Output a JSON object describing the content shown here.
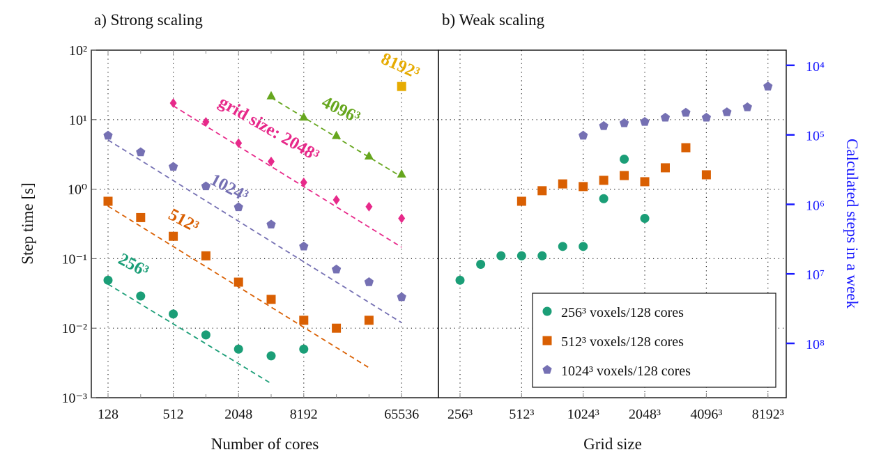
{
  "chart_data": [
    {
      "type": "scatter",
      "title": "a) Strong scaling",
      "xlabel": "Number of cores",
      "ylabel": "Step time [s]",
      "xscale": "log2",
      "yscale": "log10",
      "xlim": [
        128,
        65536
      ],
      "ylim": [
        0.001,
        100
      ],
      "grid": true,
      "x_ticks": [
        128,
        512,
        2048,
        8192,
        65536
      ],
      "x_tick_labels": [
        "128",
        "512",
        "2048",
        "8192",
        "65536"
      ],
      "y_ticks": [
        100,
        10,
        1,
        0.1,
        0.01,
        0.001
      ],
      "y_tick_labels": [
        "10²",
        "10¹",
        "10⁰",
        "10⁻¹",
        "10⁻²",
        "10⁻³"
      ],
      "series": [
        {
          "annotation": "256³",
          "color": "#1b9e77",
          "marker": "circle",
          "x": [
            128,
            256,
            512,
            1024,
            2048,
            4096,
            8192
          ],
          "y": [
            0.049,
            0.029,
            0.016,
            0.008,
            0.005,
            0.004,
            0.005
          ],
          "reference_line": {
            "from": [
              128,
              0.043
            ],
            "to": [
              4096,
              0.0016
            ]
          }
        },
        {
          "annotation": "512³",
          "color": "#d95f02",
          "marker": "square",
          "x": [
            128,
            256,
            512,
            1024,
            2048,
            4096,
            8192,
            16384,
            32768
          ],
          "y": [
            0.67,
            0.39,
            0.21,
            0.11,
            0.046,
            0.026,
            0.013,
            0.01,
            0.013
          ],
          "reference_line": {
            "from": [
              128,
              0.57
            ],
            "to": [
              32768,
              0.0027
            ]
          }
        },
        {
          "annotation": "1024³",
          "color": "#7570b3",
          "marker": "pentagon",
          "x": [
            128,
            256,
            512,
            1024,
            2048,
            4096,
            8192,
            16384,
            32768,
            65536
          ],
          "y": [
            5.9,
            3.4,
            2.1,
            1.1,
            0.55,
            0.31,
            0.15,
            0.07,
            0.046,
            0.028
          ],
          "reference_line": {
            "from": [
              128,
              5.1
            ],
            "to": [
              65536,
              0.012
            ]
          }
        },
        {
          "annotation": "grid size: 2048³",
          "color": "#e7298a",
          "marker": "diamond",
          "x": [
            512,
            1024,
            2048,
            4096,
            8192,
            16384,
            32768,
            65536
          ],
          "y": [
            17.3,
            9.3,
            4.6,
            2.5,
            1.25,
            0.7,
            0.56,
            0.38
          ],
          "reference_line": {
            "from": [
              512,
              15.8
            ],
            "to": [
              65536,
              0.146
            ]
          }
        },
        {
          "annotation": "4096³",
          "color": "#66a61e",
          "marker": "triangle",
          "x": [
            4096,
            8192,
            16384,
            32768,
            65536
          ],
          "y": [
            22,
            10.9,
            5.9,
            3.0,
            1.65
          ],
          "reference_line": {
            "from": [
              4096,
              20.8
            ],
            "to": [
              65536,
              1.5
            ]
          }
        },
        {
          "annotation": "8192³",
          "color": "#e6ab02",
          "marker": "square",
          "x": [
            65536
          ],
          "y": [
            30
          ]
        }
      ]
    },
    {
      "type": "scatter",
      "title": "b) Weak scaling",
      "xlabel": "Grid size",
      "ylabel_right": "Calculated steps in a week",
      "right_axis_color": "#1a1aff",
      "xscale": "log",
      "yscale": "log10",
      "ylim": [
        0.001,
        100
      ],
      "grid": true,
      "x_ticks": [
        256,
        512,
        1024,
        2048,
        4096,
        8192
      ],
      "x_tick_labels": [
        "256³",
        "512³",
        "1024³",
        "2048³",
        "4096³",
        "8192³"
      ],
      "right_y_ticks": [
        10000,
        100000,
        1000000,
        10000000,
        100000000
      ],
      "right_y_tick_labels": [
        "10⁴",
        "10⁵",
        "10⁶",
        "10⁷",
        "10⁸"
      ],
      "legend_position": "bottom-right",
      "series": [
        {
          "name": "256³ voxels/128 cores",
          "color": "#1b9e77",
          "marker": "circle",
          "x": [
            256,
            323,
            406,
            512,
            645,
            813,
            1024,
            1290,
            1625,
            2048
          ],
          "y": [
            0.049,
            0.083,
            0.11,
            0.11,
            0.11,
            0.15,
            0.15,
            0.73,
            2.7,
            0.38
          ]
        },
        {
          "name": "512³ voxels/128 cores",
          "color": "#d95f02",
          "marker": "square",
          "x": [
            512,
            645,
            813,
            1024,
            1290,
            1625,
            2048,
            2580,
            3251,
            4096
          ],
          "y": [
            0.67,
            0.95,
            1.19,
            1.09,
            1.34,
            1.57,
            1.28,
            2.03,
            3.95,
            1.61
          ]
        },
        {
          "name": "1024³ voxels/128 cores",
          "color": "#7570b3",
          "marker": "pentagon",
          "x": [
            1024,
            1290,
            1625,
            2048,
            2580,
            3251,
            4096,
            5161,
            6502,
            8192
          ],
          "y": [
            5.9,
            8.1,
            8.9,
            9.3,
            10.7,
            12.6,
            10.7,
            12.8,
            15.1,
            30
          ]
        }
      ]
    }
  ]
}
